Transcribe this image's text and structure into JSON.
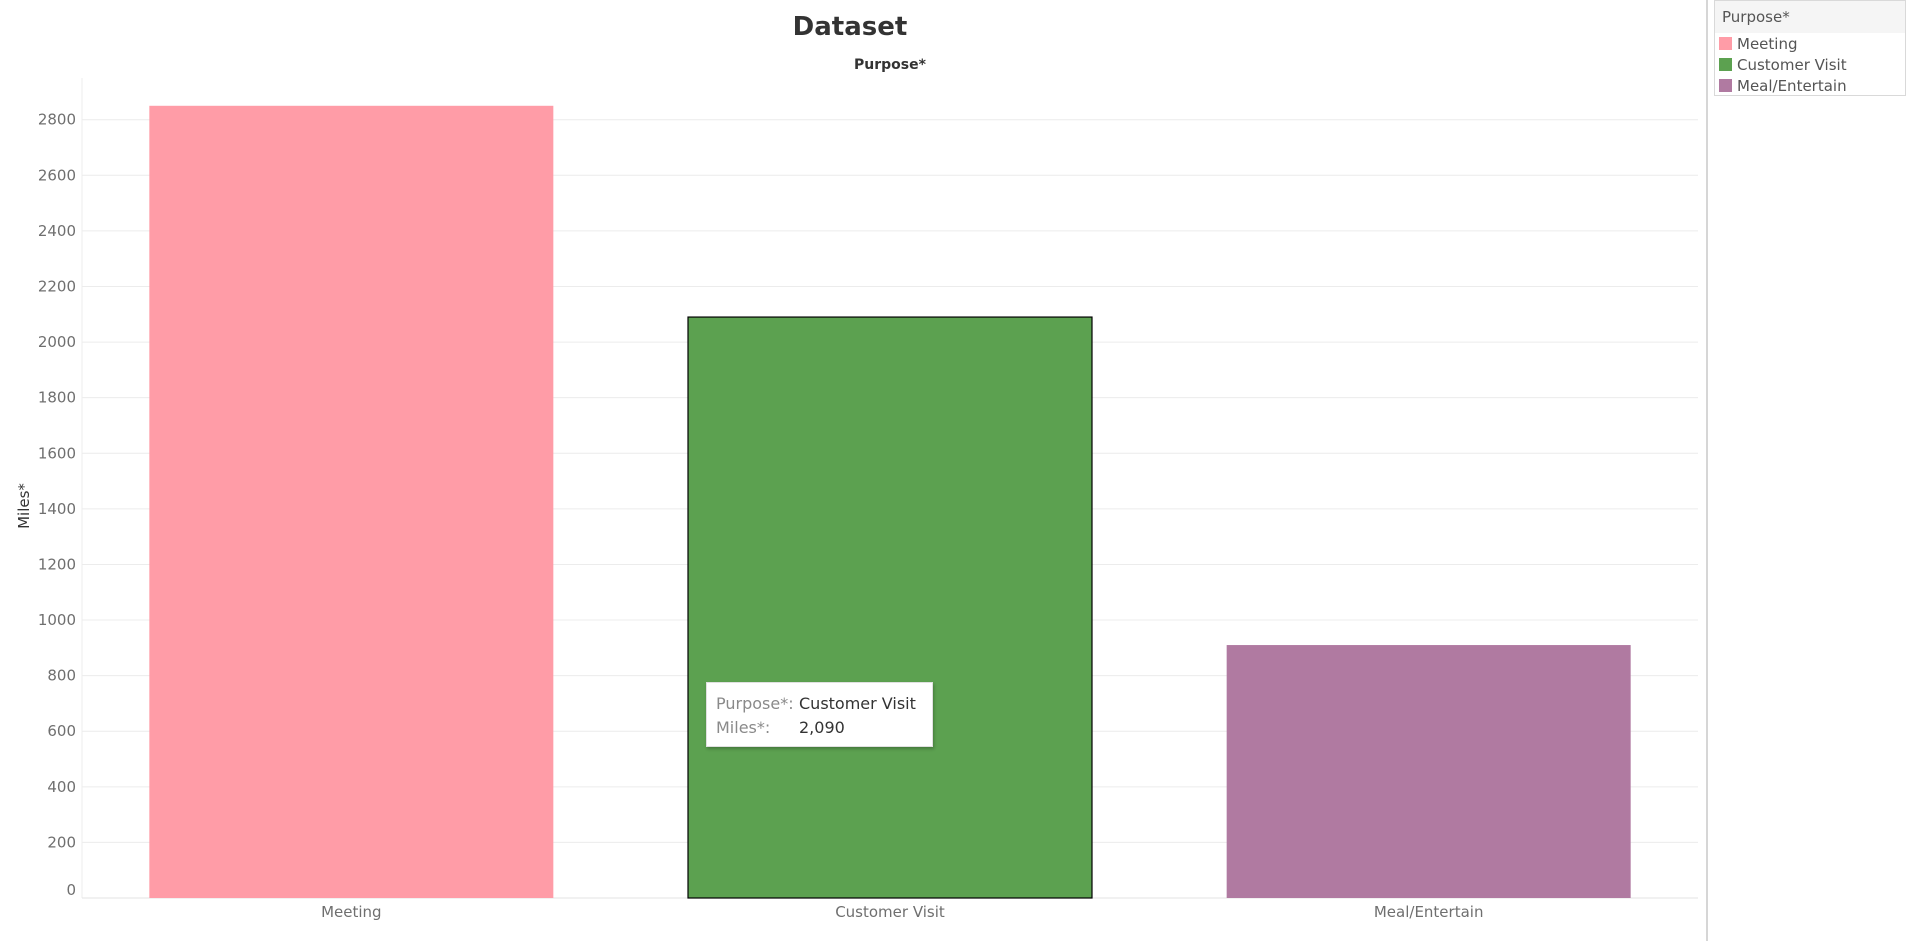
{
  "chart_data": {
    "type": "bar",
    "title": "Dataset",
    "xlabel": "Purpose*",
    "ylabel": "Miles*",
    "categories": [
      "Meeting",
      "Customer Visit",
      "Meal/Entertain"
    ],
    "values": [
      2850,
      2090,
      910
    ],
    "colors": [
      "#ff9ca7",
      "#5ca150",
      "#b07aa1"
    ],
    "highlighted": "Customer Visit",
    "ylim": [
      0,
      2950
    ],
    "yticks": [
      0,
      200,
      400,
      600,
      800,
      1000,
      1200,
      1400,
      1600,
      1800,
      2000,
      2200,
      2400,
      2600,
      2800
    ],
    "grid": true,
    "legend_position": "top-right"
  },
  "legend": {
    "title": "Purpose*",
    "items": [
      {
        "label": "Meeting",
        "color": "#ff9ca7"
      },
      {
        "label": "Customer Visit",
        "color": "#5ca150"
      },
      {
        "label": "Meal/Entertain",
        "color": "#b07aa1"
      }
    ]
  },
  "tooltip": {
    "rows": [
      {
        "key": "Purpose*:",
        "value": "Customer Visit"
      },
      {
        "key": "Miles*:",
        "value": "2,090"
      }
    ]
  }
}
